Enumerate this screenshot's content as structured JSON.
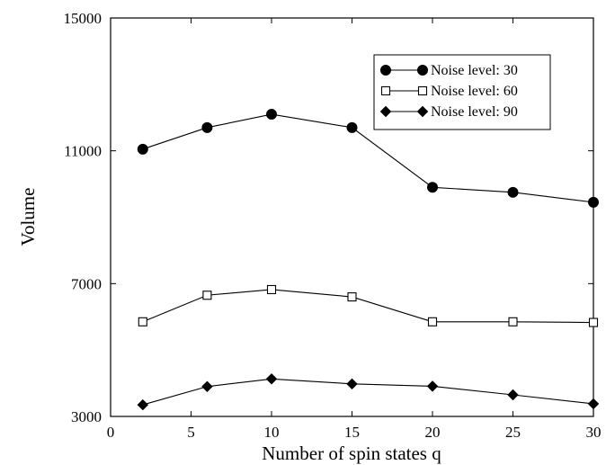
{
  "chart_data": {
    "type": "line",
    "title": "",
    "xlabel": "Number of spin states q",
    "ylabel": "Volume",
    "xlim": [
      0,
      30
    ],
    "ylim": [
      3000,
      15000
    ],
    "xticks": [
      0,
      5,
      10,
      15,
      20,
      25,
      30
    ],
    "yticks": [
      3000,
      7000,
      11000,
      15000
    ],
    "xtick_labels": [
      "0",
      "5",
      "10",
      "15",
      "20",
      "25",
      "30"
    ],
    "ytick_labels": [
      "3000",
      "7000",
      "11000",
      "15000"
    ],
    "grid": false,
    "legend_position": "top-right",
    "x": [
      2,
      6,
      10,
      15,
      20,
      25,
      30
    ],
    "series": [
      {
        "name": "Noise level: 30",
        "marker": "filled-circle",
        "color": "#000000",
        "values": [
          11050,
          11700,
          12100,
          11700,
          9900,
          9750,
          9450
        ]
      },
      {
        "name": "Noise level: 60",
        "marker": "open-square",
        "color": "#000000",
        "values": [
          5850,
          6650,
          6820,
          6600,
          5850,
          5850,
          5830
        ]
      },
      {
        "name": "Noise level: 90",
        "marker": "filled-diamond",
        "color": "#000000",
        "values": [
          3350,
          3900,
          4130,
          3980,
          3910,
          3650,
          3380
        ]
      }
    ]
  }
}
